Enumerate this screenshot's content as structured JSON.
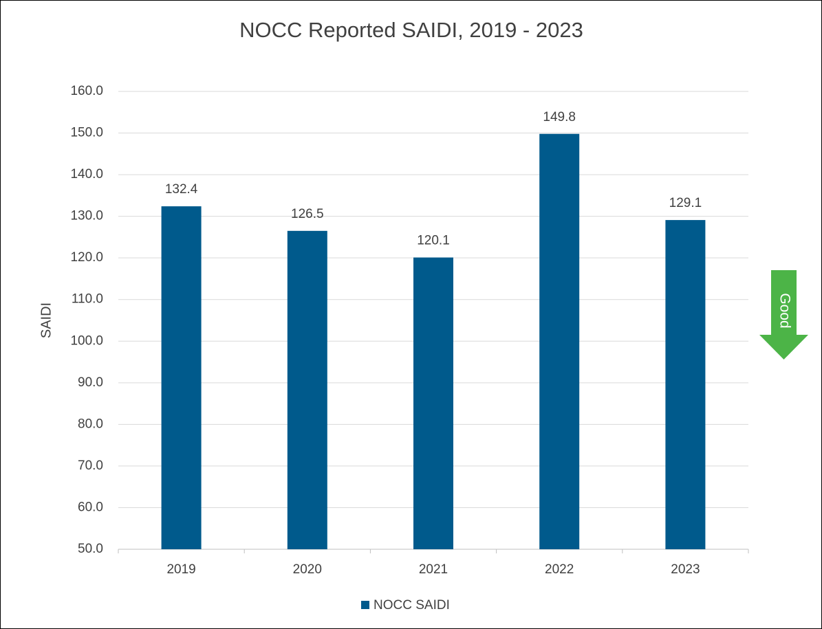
{
  "chart_data": {
    "type": "bar",
    "title": "NOCC Reported SAIDI, 2019 - 2023",
    "y_label": "SAIDI",
    "categories": [
      "2019",
      "2020",
      "2021",
      "2022",
      "2023"
    ],
    "series": [
      {
        "name": "NOCC SAIDI",
        "color": "#005a8c",
        "values": [
          132.4,
          126.5,
          120.1,
          149.8,
          129.1
        ]
      }
    ],
    "ylim": [
      50,
      160
    ],
    "yticks": [
      {
        "value": 50,
        "label": "50.0"
      },
      {
        "value": 60,
        "label": "60.0"
      },
      {
        "value": 70,
        "label": "70.0"
      },
      {
        "value": 80,
        "label": "80.0"
      },
      {
        "value": 90,
        "label": "90.0"
      },
      {
        "value": 100,
        "label": "100.0"
      },
      {
        "value": 110,
        "label": "110.0"
      },
      {
        "value": 120,
        "label": "120.0"
      },
      {
        "value": 130,
        "label": "130.0"
      },
      {
        "value": 140,
        "label": "140.0"
      },
      {
        "value": 150,
        "label": "150.0"
      },
      {
        "value": 160,
        "label": "160.0"
      }
    ],
    "grid": true,
    "legend": "bottom",
    "annotation": "Good"
  }
}
